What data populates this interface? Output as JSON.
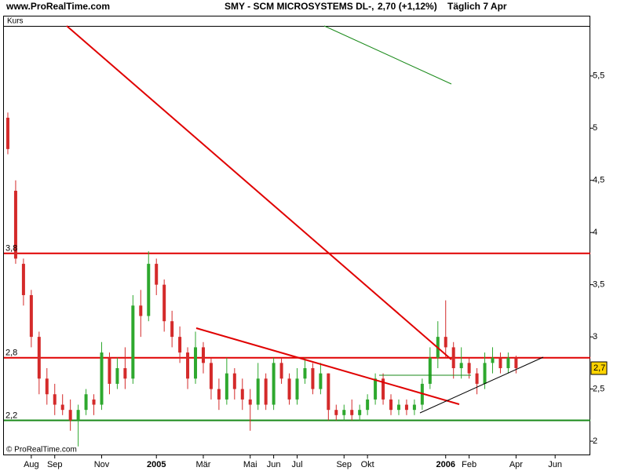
{
  "header": {
    "site": "www.ProRealTime.com",
    "instrument": "SMY - SCM MICROSYSTEMS  DL-,",
    "quote": "2,70 (+1,12%)",
    "period": "Täglich  7 Apr"
  },
  "footer": "© ProRealTime.com",
  "chart_data": {
    "type": "candlestick",
    "panel_label": "Kurs",
    "up_color": "#2ea82e",
    "down_color": "#d42a2a",
    "categories": [
      null,
      null,
      null,
      "Aug",
      null,
      null,
      "Sep",
      null,
      null,
      null,
      null,
      null,
      "Nov",
      null,
      null,
      null,
      null,
      null,
      null,
      "2005",
      null,
      null,
      null,
      null,
      null,
      "Mär",
      null,
      null,
      null,
      null,
      null,
      "Mai",
      null,
      null,
      "Jun",
      null,
      null,
      "Jul",
      null,
      null,
      null,
      null,
      null,
      "Sep",
      null,
      null,
      "Okt",
      null,
      null,
      null,
      null,
      null,
      null,
      null,
      null,
      null,
      "2006",
      null,
      null,
      "Feb",
      null,
      null,
      null,
      null,
      null,
      "Apr",
      null,
      null,
      null,
      null,
      "Jun",
      null,
      null,
      null,
      null
    ],
    "open": [
      5.1,
      4.4,
      3.7,
      3.4,
      3.0,
      2.6,
      2.45,
      2.35,
      2.3,
      2.2,
      2.3,
      2.4,
      2.35,
      2.8,
      2.55,
      2.7,
      2.6,
      3.3,
      3.2,
      3.7,
      3.5,
      3.15,
      3.0,
      2.85,
      2.6,
      2.9,
      2.75,
      2.5,
      2.4,
      2.65,
      2.5,
      2.4,
      2.35,
      2.6,
      2.35,
      2.75,
      2.6,
      2.4,
      2.6,
      2.7,
      2.5,
      2.65,
      2.3,
      2.25,
      2.3,
      2.25,
      2.3,
      2.4,
      2.6,
      2.4,
      2.3,
      2.35,
      2.3,
      2.35,
      2.55,
      2.8,
      3.0,
      2.9,
      2.7,
      2.75,
      2.65,
      2.55,
      2.75,
      2.8,
      2.7,
      2.8,
      null,
      null,
      null,
      null,
      null,
      null,
      null,
      null,
      null
    ],
    "high": [
      5.15,
      4.5,
      3.75,
      3.45,
      3.05,
      2.7,
      2.55,
      2.45,
      2.4,
      2.35,
      2.5,
      2.45,
      2.95,
      2.85,
      2.8,
      2.9,
      3.4,
      3.45,
      3.82,
      3.75,
      3.55,
      3.25,
      3.1,
      2.9,
      3.05,
      2.95,
      2.8,
      2.6,
      2.8,
      2.7,
      2.6,
      2.5,
      2.75,
      2.65,
      2.8,
      2.8,
      2.65,
      2.7,
      2.8,
      2.75,
      2.75,
      2.65,
      2.35,
      2.35,
      2.4,
      2.35,
      2.45,
      2.65,
      2.65,
      2.45,
      2.4,
      2.4,
      2.4,
      2.6,
      2.9,
      3.15,
      3.35,
      2.95,
      2.9,
      2.8,
      2.7,
      2.85,
      2.9,
      2.85,
      2.85,
      2.82,
      null,
      null,
      null,
      null,
      null,
      null,
      null,
      null,
      null
    ],
    "low": [
      4.75,
      3.7,
      3.3,
      2.9,
      2.45,
      2.35,
      2.25,
      2.25,
      2.1,
      1.95,
      2.25,
      2.25,
      2.3,
      2.45,
      2.5,
      2.5,
      2.55,
      3.0,
      3.15,
      3.4,
      3.05,
      2.9,
      2.75,
      2.5,
      2.55,
      2.65,
      2.4,
      2.3,
      2.35,
      2.4,
      2.3,
      2.1,
      2.3,
      2.3,
      2.3,
      2.55,
      2.35,
      2.35,
      2.55,
      2.45,
      2.45,
      2.2,
      2.2,
      2.2,
      2.2,
      2.2,
      2.25,
      2.35,
      2.35,
      2.25,
      2.25,
      2.25,
      2.25,
      2.3,
      2.5,
      2.7,
      2.8,
      2.6,
      2.6,
      2.6,
      2.45,
      2.5,
      2.65,
      2.65,
      2.65,
      2.65,
      null,
      null,
      null,
      null,
      null,
      null,
      null,
      null,
      null
    ],
    "close": [
      4.8,
      3.75,
      3.4,
      3.0,
      2.6,
      2.45,
      2.35,
      2.3,
      2.2,
      2.3,
      2.45,
      2.35,
      2.85,
      2.55,
      2.7,
      2.6,
      3.3,
      3.2,
      3.7,
      3.5,
      3.15,
      3.0,
      2.85,
      2.6,
      2.9,
      2.75,
      2.5,
      2.4,
      2.65,
      2.5,
      2.4,
      2.35,
      2.6,
      2.35,
      2.75,
      2.6,
      2.4,
      2.6,
      2.7,
      2.5,
      2.65,
      2.3,
      2.25,
      2.3,
      2.25,
      2.3,
      2.4,
      2.6,
      2.4,
      2.3,
      2.35,
      2.3,
      2.35,
      2.55,
      2.8,
      3.0,
      2.9,
      2.7,
      2.75,
      2.65,
      2.55,
      2.75,
      2.8,
      2.7,
      2.8,
      2.7,
      null,
      null,
      null,
      null,
      null,
      null,
      null,
      null,
      null
    ],
    "ylim": [
      1.865,
      5.98
    ],
    "yticks": [
      2,
      {
        "value": 2.5,
        "label": "2,5"
      },
      3,
      {
        "value": 3.5,
        "label": "3,5"
      },
      4,
      {
        "value": 4.5,
        "label": "4,5"
      },
      5,
      {
        "value": 5.5,
        "label": "5,5"
      }
    ],
    "levels": [
      {
        "value": 3.8,
        "label": "3,8",
        "color": "#e00000"
      },
      {
        "value": 2.8,
        "label": "2,8",
        "color": "#e00000"
      },
      {
        "value": 2.2,
        "label": "2,2",
        "color": "#1a8a1a"
      }
    ],
    "last": {
      "value": 2.7,
      "label": "2,7"
    }
  }
}
